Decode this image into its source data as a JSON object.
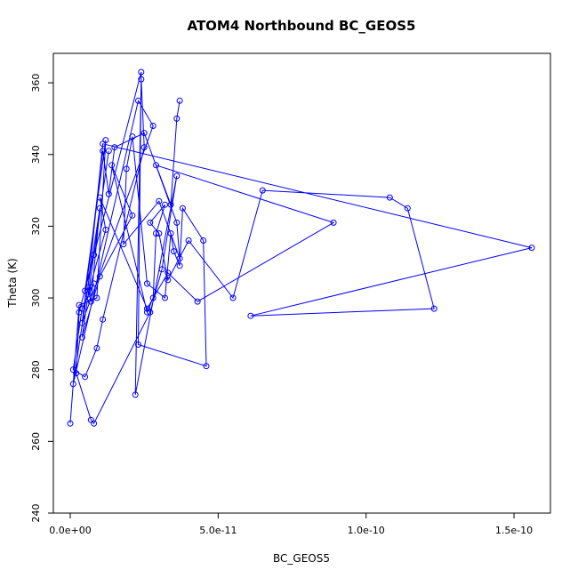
{
  "chart_data": {
    "type": "line",
    "title": "ATOM4 Northbound BC_GEOS5",
    "xlabel": "BC_GEOS5",
    "ylabel": "Theta (K)",
    "xlim": [
      0,
      1.6e-10
    ],
    "ylim": [
      240,
      365
    ],
    "x_ticks": [
      {
        "value": 0,
        "label": "0.0e+00"
      },
      {
        "value": 5e-11,
        "label": "5.0e-11"
      },
      {
        "value": 1e-10,
        "label": "1.0e-10"
      },
      {
        "value": 1.5e-10,
        "label": "1.5e-10"
      }
    ],
    "y_ticks": [
      {
        "value": 240,
        "label": "240"
      },
      {
        "value": 260,
        "label": "260"
      },
      {
        "value": 280,
        "label": "280"
      },
      {
        "value": 300,
        "label": "300"
      },
      {
        "value": 320,
        "label": "320"
      },
      {
        "value": 340,
        "label": "340"
      },
      {
        "value": 360,
        "label": "360"
      }
    ],
    "series": [
      {
        "color": "#0000ff",
        "marker": "open-circle",
        "x": [
          0,
          3e-12,
          9e-12,
          1.2e-11,
          5e-12,
          8e-12,
          1.3e-11,
          4e-12,
          1e-11,
          2.1e-11,
          1.4e-11,
          2.6e-11,
          2.8e-11,
          2.9e-11,
          3.2e-11,
          2.7e-11,
          3e-11,
          3.3e-11,
          4e-11,
          5.5e-11,
          6.5e-11,
          1.08e-10,
          1.14e-10,
          1.23e-10,
          6.1e-11,
          1.56e-10,
          1.1e-11,
          6e-12,
          7e-12,
          1e-11,
          1e-12,
          2.3e-11,
          2.8e-11,
          4e-12,
          1.1e-11,
          1.3e-11,
          1.5e-11,
          2.5e-11,
          3.6e-11,
          3.7e-11,
          3e-11,
          1.8e-11,
          1.9e-11,
          2.1e-11,
          2.6e-11,
          3.2e-11,
          3.4e-11,
          3.5e-11,
          3.7e-11,
          3.8e-11,
          4.5e-11,
          4.6e-11,
          2.3e-11,
          2.4e-11,
          3e-12,
          2e-12,
          7e-12,
          8e-12,
          2.7e-11,
          3.1e-11,
          3.6e-11,
          2.2e-11,
          2.4e-11,
          2.5e-11,
          1.1e-11,
          9e-12,
          5e-12,
          1e-12,
          4e-12,
          8e-12,
          6e-12,
          1.2e-11,
          1e-11,
          2.6e-11,
          3.3e-11,
          4.3e-11,
          8.9e-11,
          2.9e-11,
          3.4e-11,
          3.6e-11,
          3.7e-11
        ],
        "y": [
          265,
          298,
          300,
          344,
          302,
          312,
          341,
          289,
          306,
          323,
          337,
          296,
          300,
          318,
          326,
          321,
          318,
          305,
          316,
          300,
          330,
          328,
          325,
          297,
          295,
          314,
          343,
          303,
          299,
          325,
          276,
          355,
          348,
          293,
          341,
          329,
          342,
          346,
          321,
          311,
          327,
          315,
          336,
          345,
          304,
          300,
          318,
          313,
          309,
          325,
          316,
          281,
          287,
          363,
          296,
          279,
          266,
          265,
          296,
          308,
          334,
          273,
          361,
          342,
          294,
          286,
          278,
          280,
          297,
          304,
          301,
          319,
          328,
          297,
          307,
          299,
          321,
          337,
          326,
          350,
          355
        ]
      }
    ]
  }
}
